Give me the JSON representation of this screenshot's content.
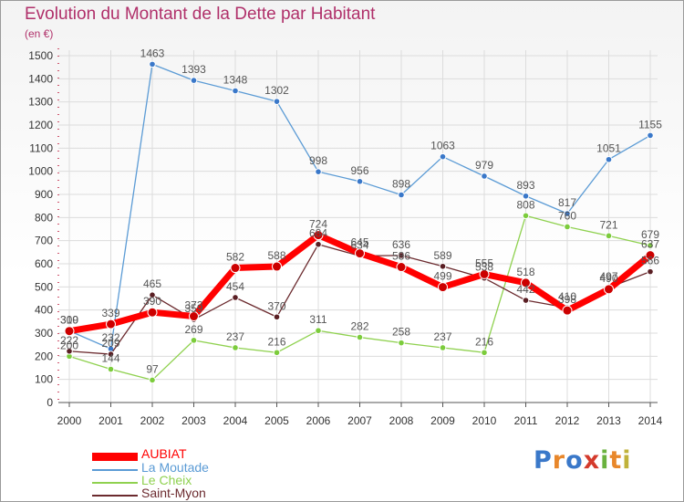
{
  "chart_data": {
    "type": "line",
    "title": "Evolution du Montant de la Dette par Habitant",
    "ylabel": "(en €)",
    "xlabel": "",
    "categories": [
      "2000",
      "2001",
      "2002",
      "2003",
      "2004",
      "2005",
      "2006",
      "2007",
      "2008",
      "2009",
      "2010",
      "2011",
      "2012",
      "2013",
      "2014"
    ],
    "ylim": [
      0,
      1500
    ],
    "yticks": [
      0,
      100,
      200,
      300,
      400,
      500,
      600,
      700,
      800,
      900,
      1000,
      1100,
      1200,
      1300,
      1400,
      1500
    ],
    "grid": true,
    "legend_position": "bottom-left",
    "series": [
      {
        "name": "AUBIAT",
        "color": "#ff0000",
        "values": [
          309,
          339,
          390,
          373,
          582,
          588,
          724,
          645,
          586,
          499,
          555,
          518,
          398,
          490,
          637
        ]
      },
      {
        "name": "La Moutade",
        "color": "#5b9bd5",
        "values": [
          310,
          232,
          1463,
          1393,
          1348,
          1302,
          998,
          956,
          898,
          1063,
          979,
          893,
          817,
          1051,
          1155
        ]
      },
      {
        "name": "Le Cheix",
        "color": "#8fd14f",
        "values": [
          200,
          144,
          97,
          269,
          237,
          216,
          311,
          282,
          258,
          237,
          216,
          808,
          760,
          721,
          679
        ]
      },
      {
        "name": "Saint-Myon",
        "color": "#6b2a2e",
        "values": [
          222,
          209,
          465,
          359,
          454,
          370,
          684,
          634,
          636,
          589,
          538,
          442,
          410,
          497,
          566
        ]
      }
    ]
  },
  "brand": {
    "text": "Proxiti",
    "letters": [
      "P",
      "r",
      "o",
      "x",
      "i",
      "t",
      "i"
    ],
    "colors": [
      "#3a78c9",
      "#e8872b",
      "#3a78c9",
      "#d43a2c",
      "#6ab23e",
      "#e8872b",
      "#c0b23a"
    ]
  }
}
